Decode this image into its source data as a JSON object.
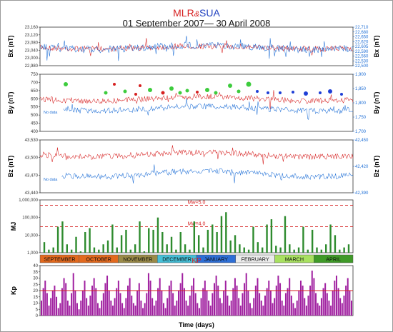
{
  "title": {
    "a": "MLR",
    "amp": "&",
    "b": "SUA",
    "range": "01 September 2007— 30 April 2008"
  },
  "xlabel": "Time (days)",
  "colors": {
    "mlr": "#d62020",
    "sua": "#1f6fd6",
    "mj": "#2e8b2e",
    "kp": "#a020a0",
    "ref": "#d62020"
  },
  "chart_data": [
    {
      "type": "line",
      "panel": "Bx",
      "y_label_left": "Bx (nT)",
      "y_label_right": "Bx (nT)",
      "left_ticks": [
        "23,160",
        "23,120",
        "23,080",
        "23,040",
        "23,000",
        "22,980"
      ],
      "right_ticks": [
        "22,710",
        "22,680",
        "22,650",
        "22,620",
        "22,605",
        "22,590",
        "22,560",
        "22,530",
        "22,500"
      ],
      "ylim_left": [
        22980,
        23160
      ],
      "ylim_right": [
        22500,
        22710
      ],
      "series": [
        {
          "name": "MLR",
          "color": "#d62020",
          "level": 23065
        },
        {
          "name": "SUA",
          "color": "#1f6fd6",
          "level": 22600
        }
      ]
    },
    {
      "type": "line",
      "panel": "By",
      "y_label_left": "By (nT)",
      "y_label_right": "By (nT)",
      "left_ticks": [
        "750",
        "700",
        "650",
        "600",
        "550",
        "500",
        "450",
        "400"
      ],
      "right_ticks": [
        "1,900",
        "1,850",
        "1,800",
        "1,750",
        "1,700"
      ],
      "ylim_left": [
        400,
        750
      ],
      "ylim_right": [
        1700,
        1900
      ],
      "annotation": "No data",
      "series": [
        {
          "name": "MLR",
          "color": "#d62020",
          "level": 600
        },
        {
          "name": "SUA",
          "color": "#1f6fd6",
          "level": 1780
        }
      ]
    },
    {
      "type": "line",
      "panel": "Bz",
      "y_label_left": "Bz (nT)",
      "y_label_right": "Bz (nT)",
      "left_ticks": [
        "43,530",
        "43,500",
        "43,470",
        "43,440"
      ],
      "right_ticks": [
        "42,450",
        "42,420",
        "42,390"
      ],
      "ylim_left": [
        43440,
        43530
      ],
      "ylim_right": [
        42380,
        42460
      ],
      "annotation": "No data",
      "series": [
        {
          "name": "MLR",
          "color": "#d62020",
          "level": 43505
        },
        {
          "name": "SUA",
          "color": "#1f6fd6",
          "level": 42400
        }
      ]
    },
    {
      "type": "bar",
      "panel": "MJ",
      "ylabel": "MJ",
      "scale": "log",
      "left_ticks": [
        "1,000,000",
        "100,000",
        "10,000",
        "1,000"
      ],
      "ylim": [
        1000,
        1000000
      ],
      "reference_lines": [
        {
          "label": "Mw=5.0",
          "value": 500000
        },
        {
          "label": "Mw=4.0",
          "value": 30000
        }
      ],
      "values": [
        4000,
        1500,
        2000,
        30000,
        60000,
        3000,
        1500,
        8000,
        1200,
        15000,
        25000,
        2000,
        1500,
        3000,
        5000,
        40000,
        2000,
        10000,
        20000,
        1500,
        3000,
        60000,
        1200,
        25000,
        20000,
        100000,
        15000,
        3000,
        8000,
        1500,
        15000,
        3000,
        1500,
        60000,
        10000,
        2000,
        20000,
        40000,
        15000,
        120000,
        200000,
        5000,
        10000,
        3000,
        2000,
        1500,
        30000,
        4000,
        2000,
        40000,
        80000,
        2500,
        2000,
        120000,
        3000,
        1500,
        2000,
        30000,
        1500,
        20000,
        2000,
        1500,
        3000,
        40000,
        10000,
        1500,
        2000,
        3000
      ]
    },
    {
      "type": "bar",
      "panel": "Kp",
      "ylabel": "Kp",
      "legend_label": "KP",
      "left_ticks": [
        "40",
        "35",
        "30",
        "25",
        "20",
        "15",
        "10",
        "5",
        "0"
      ],
      "ylim": [
        0,
        40
      ],
      "reference_value": 20,
      "months": [
        "SEPTEMBER",
        "OCTOBER",
        "NOVEMBER",
        "DECEMBER",
        "JANUARY",
        "FEBRUARY",
        "MARCH",
        "APRIL"
      ],
      "month_colors": [
        "#e2691e",
        "#e2691e",
        "#9a8a48",
        "#45c0d8",
        "#2e6fd6",
        "#ebebeb",
        "#a8e060",
        "#3f9a28"
      ],
      "values": [
        12,
        22,
        28,
        18,
        8,
        14,
        20,
        24,
        15,
        6,
        10,
        22,
        30,
        26,
        12,
        8,
        18,
        34,
        20,
        10,
        5,
        12,
        20,
        28,
        14,
        8,
        16,
        24,
        30,
        22,
        10,
        6,
        12,
        18,
        26,
        32,
        20,
        12,
        8,
        14,
        22,
        28,
        18,
        10,
        6,
        14,
        24,
        30,
        16,
        10,
        8,
        20,
        26,
        12,
        6,
        10,
        18,
        34,
        28,
        14,
        8,
        12,
        22,
        30,
        20,
        10,
        6,
        14,
        24,
        28,
        18,
        8,
        12,
        20,
        26,
        34,
        22,
        12,
        8,
        16,
        24,
        30,
        18,
        10,
        6,
        14,
        22,
        28,
        20,
        12,
        8,
        18,
        26,
        32,
        24,
        14,
        10,
        20,
        28,
        16,
        8,
        12,
        22,
        30,
        24,
        14,
        8,
        18,
        26,
        34,
        20,
        10,
        6,
        14,
        24,
        30,
        18,
        12,
        8,
        16,
        22,
        28,
        20,
        10,
        14,
        24,
        32,
        26,
        12,
        8,
        18,
        22,
        30,
        16,
        10,
        6,
        12,
        20,
        28,
        24,
        14,
        8,
        16,
        24,
        36,
        30,
        18,
        10,
        8,
        14,
        22,
        26,
        18,
        12,
        8,
        20,
        28,
        32,
        22,
        14,
        10,
        16,
        24,
        30,
        20,
        12
      ]
    }
  ]
}
